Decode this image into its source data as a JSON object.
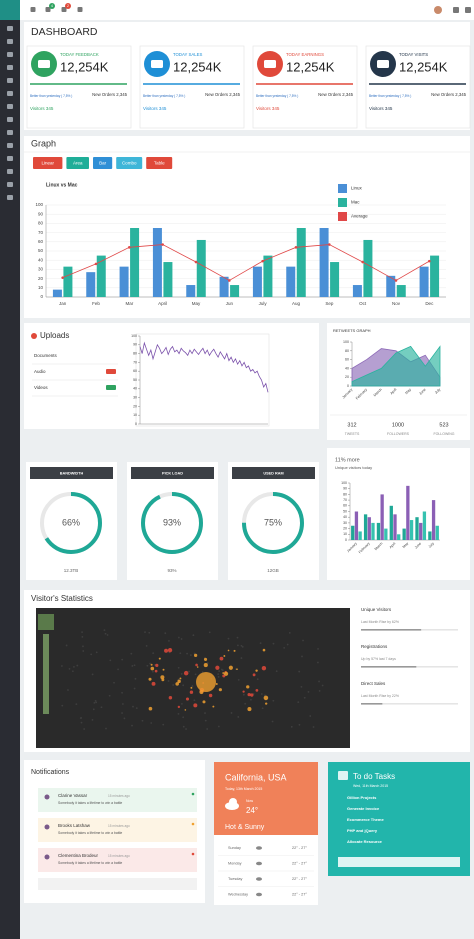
{
  "header": {
    "badges": [
      "4",
      "2"
    ]
  },
  "dashboard": {
    "title": "DASHBOARD",
    "cards": [
      {
        "label": "TODAY FEEDBACK",
        "value": "12,254K",
        "note": "Better than yesterday ( 7,5% )",
        "orders": "New Orders 2,345",
        "visits": "Visitors 345",
        "color": "#2fa360"
      },
      {
        "label": "TODAY SALES",
        "value": "12,254K",
        "note": "Better than yesterday ( 7,5% )",
        "orders": "New Orders 2,345",
        "visits": "Visitors 345",
        "color": "#1e8fd6"
      },
      {
        "label": "TODAY EARNINGS",
        "value": "12,254K",
        "note": "Better than yesterday ( 7,5% )",
        "orders": "New Orders 2,345",
        "visits": "Visitors 345",
        "color": "#e0493a"
      },
      {
        "label": "TODAY VISITS",
        "value": "12,254K",
        "note": "Better than yesterday ( 7,5% )",
        "orders": "New Orders 2,345",
        "visits": "Visitors 345",
        "color": "#24364a"
      }
    ]
  },
  "graph": {
    "title": "Graph",
    "buttons": [
      {
        "label": "Linear",
        "color": "#e0493a"
      },
      {
        "label": "Area",
        "color": "#1fae98"
      },
      {
        "label": "Bar",
        "color": "#2f8fd6"
      },
      {
        "label": "Combo",
        "color": "#3fb6d8"
      },
      {
        "label": "Table",
        "color": "#e0493a"
      }
    ]
  },
  "uploads": {
    "title": "Uploads",
    "items": [
      "Documents",
      "Audio",
      "Videos"
    ]
  },
  "retweets": {
    "stats": [
      {
        "value": "312",
        "label": "TWEETS"
      },
      {
        "value": "1000",
        "label": "FOLLOWERS"
      },
      {
        "value": "523",
        "label": "FOLLOWING"
      }
    ]
  },
  "visitors_today": {
    "headline": "11% more",
    "sub": "Unique visitors today"
  },
  "meters": [
    {
      "title": "BANDWIDTH",
      "value": 66,
      "value_label": "66%",
      "footer": "12.3TB"
    },
    {
      "title": "PICK LOAD",
      "value": 93,
      "value_label": "93%",
      "footer": "93%"
    },
    {
      "title": "USED RAM",
      "value": 75,
      "value_label": "75%",
      "footer": "12GB"
    }
  ],
  "visitor_stats": {
    "title": "Visitor's Statistics",
    "metrics": [
      {
        "label": "Unique Visitors",
        "note": "Last Month Rise by 62%",
        "value": 62
      },
      {
        "label": "Registrations",
        "note": "Up by 57% last 7 days",
        "value": 57
      },
      {
        "label": "Direct Sales",
        "note": "Last Month Rise by 22%",
        "value": 22
      }
    ]
  },
  "notifications": {
    "title": "Notifications",
    "items": [
      {
        "name": "Clarine Vassar",
        "time": "15 minutes ago",
        "text": "Somebody it takes a lifetime to win a battle",
        "color": "#eaf6ee",
        "dot": "#2fa360"
      },
      {
        "name": "Brooks Latshaw",
        "time": "15 minutes ago",
        "text": "Somebody it takes a lifetime to win a battle",
        "color": "#fdf4e4",
        "dot": "#f0a030"
      },
      {
        "name": "Clementina Brodeur",
        "time": "15 minutes ago",
        "text": "Somebody it takes a lifetime to win a battle",
        "color": "#fbe9e8",
        "dot": "#e0493a"
      }
    ]
  },
  "weather": {
    "place": "California, USA",
    "date": "Today, 13th March 2015",
    "now": "Now",
    "temp": "24°",
    "summary": "Hot & Sunny",
    "days": [
      {
        "day": "Sunday",
        "range": "22° - 27°"
      },
      {
        "day": "Monday",
        "range": "22° - 27°"
      },
      {
        "day": "Tuesday",
        "range": "22° - 27°"
      },
      {
        "day": "Wednesday",
        "range": "22° - 27°"
      }
    ]
  },
  "todo": {
    "title": "To do Tasks",
    "date": "Wed, 11th March 2015",
    "items": [
      "Gillion Projects",
      "Generate Invoice",
      "Ecommerce Theme",
      "PHP and jQuery",
      "Allocate Resource"
    ]
  },
  "chart_data": [
    {
      "type": "bar",
      "title": "Linux vs Mac",
      "categories": [
        "Jan",
        "Feb",
        "Mar",
        "April",
        "May",
        "Jun",
        "July",
        "Aug",
        "Sep",
        "Oct",
        "Nov",
        "Dec"
      ],
      "series": [
        {
          "name": "Linux",
          "color": "#4a8fd6",
          "values": [
            8,
            27,
            33,
            75,
            13,
            22,
            33,
            33,
            75,
            13,
            23,
            33
          ]
        },
        {
          "name": "Mac",
          "color": "#2ab39e",
          "values": [
            33,
            45,
            75,
            38,
            62,
            13,
            45,
            75,
            38,
            62,
            13,
            45
          ]
        },
        {
          "name": "Average",
          "type": "line",
          "color": "#e04848",
          "values": [
            21,
            36,
            54,
            57,
            38,
            18,
            39,
            54,
            57,
            38,
            18,
            39
          ]
        }
      ],
      "ylim": [
        0,
        100
      ],
      "yticks": [
        0,
        10,
        20,
        30,
        40,
        50,
        60,
        70,
        80,
        90,
        100
      ],
      "grid": true,
      "legend": "top-right"
    },
    {
      "type": "line",
      "color": "#7b52ab",
      "values": [
        88,
        80,
        92,
        85,
        78,
        84,
        74,
        82,
        90,
        86,
        80,
        83,
        87,
        79,
        85,
        88,
        82,
        84,
        80,
        86,
        83,
        81,
        78,
        84,
        80,
        85,
        82,
        79,
        83,
        86,
        80,
        84,
        78,
        82,
        85,
        80,
        76,
        82,
        78,
        74,
        80,
        72,
        76,
        70,
        74,
        68,
        72,
        66,
        70,
        64,
        66,
        60,
        62,
        58,
        60,
        54,
        50,
        42,
        46,
        36
      ],
      "ylim": [
        0,
        100
      ],
      "yticks": [
        0,
        10,
        20,
        30,
        40,
        50,
        60,
        70,
        80,
        90,
        100
      ]
    },
    {
      "type": "area",
      "title": "RETWEETS GRAPH",
      "categories": [
        "January",
        "February",
        "March",
        "April",
        "May",
        "June",
        "July"
      ],
      "series": [
        {
          "color": "#8e6bb8",
          "values": [
            40,
            60,
            85,
            80,
            55,
            70,
            20
          ]
        },
        {
          "color": "#2ab39e",
          "values": [
            10,
            25,
            40,
            75,
            90,
            45,
            90
          ]
        }
      ],
      "ylim": [
        0,
        100
      ],
      "yticks": [
        0,
        20,
        40,
        60,
        80,
        100
      ]
    },
    {
      "type": "bar",
      "categories": [
        "January",
        "February",
        "March",
        "April",
        "May",
        "June",
        "July"
      ],
      "series": [
        {
          "color": "#1fa896",
          "values": [
            25,
            45,
            30,
            60,
            20,
            40,
            15
          ]
        },
        {
          "color": "#8b5fb5",
          "values": [
            50,
            40,
            80,
            45,
            95,
            30,
            70
          ]
        },
        {
          "color": "#36c2b0",
          "values": [
            15,
            30,
            20,
            10,
            35,
            50,
            25
          ]
        }
      ],
      "ylim": [
        0,
        100
      ],
      "yticks": [
        0,
        10,
        20,
        30,
        40,
        50,
        60,
        70,
        80,
        90,
        100
      ]
    }
  ]
}
